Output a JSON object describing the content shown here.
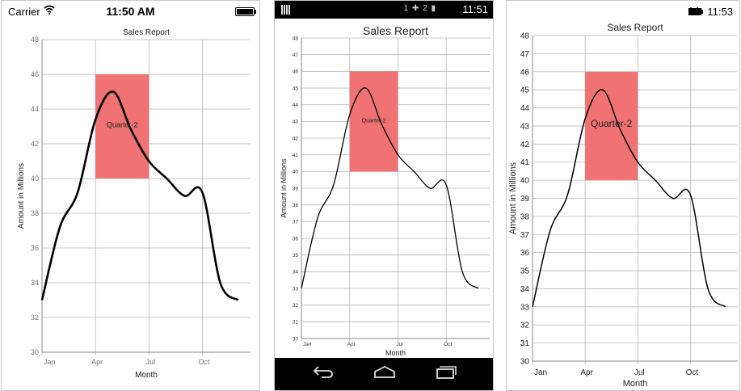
{
  "ios": {
    "carrier": "Carrier",
    "time": "11:50 AM",
    "wifi_icon": "wifi-icon",
    "battery_icon": "battery-icon"
  },
  "android": {
    "time": "11:51",
    "status_icons": "1  ✚ 2   ▮",
    "nav": {
      "back_icon": "back-icon",
      "home_icon": "home-icon",
      "recents_icon": "recents-icon"
    }
  },
  "windows": {
    "time": "11:53",
    "battery_icon": "battery-icon"
  },
  "chart_data": [
    {
      "type": "line",
      "platform": "iOS",
      "title": "Sales Report",
      "xlabel": "Month",
      "ylabel": "Amount in Millions",
      "x_ticks": [
        "Jan",
        "Apr",
        "Jul",
        "Oct"
      ],
      "ylim": [
        30,
        48
      ],
      "y_ticks": [
        30,
        32,
        34,
        36,
        38,
        40,
        42,
        44,
        46,
        48
      ],
      "grid": true,
      "series": [
        {
          "x": [
            1,
            2,
            3,
            4,
            5,
            6,
            7,
            8,
            9,
            10,
            11,
            12
          ],
          "values": [
            33,
            37.2,
            39.2,
            43.4,
            45,
            42.8,
            41,
            40,
            39,
            39.2,
            34,
            33
          ]
        }
      ],
      "band": {
        "label": "Quarter-2",
        "x_from": 4,
        "x_to": 7,
        "y_from": 40,
        "y_to": 46,
        "color": "#F07272"
      }
    },
    {
      "type": "line",
      "platform": "Android",
      "title": "Sales Report",
      "xlabel": "Month",
      "ylabel": "Amount in Millions",
      "x_ticks": [
        "Jan",
        "Apr",
        "Jul",
        "Oct"
      ],
      "ylim": [
        30,
        48
      ],
      "y_ticks": [
        30,
        31,
        32,
        33,
        34,
        35,
        36,
        37,
        38,
        39,
        40,
        41,
        42,
        43,
        44,
        45,
        46,
        47,
        48
      ],
      "grid": true,
      "series": [
        {
          "x": [
            1,
            2,
            3,
            4,
            5,
            6,
            7,
            8,
            9,
            10,
            11,
            12
          ],
          "values": [
            33,
            37.2,
            39.2,
            43.4,
            45,
            42.8,
            41,
            40,
            39,
            39.2,
            34,
            33
          ]
        }
      ],
      "band": {
        "label": "Quarter-2",
        "x_from": 4,
        "x_to": 7,
        "y_from": 40,
        "y_to": 46,
        "color": "#F07272"
      }
    },
    {
      "type": "line",
      "platform": "Windows",
      "title": "Sales Report",
      "xlabel": "Month",
      "ylabel": "Amount in Millions",
      "x_ticks": [
        "Jan",
        "Apr",
        "Jul",
        "Oct"
      ],
      "ylim": [
        30,
        48
      ],
      "y_ticks": [
        30,
        31,
        32,
        33,
        34,
        35,
        36,
        37,
        38,
        39,
        40,
        41,
        42,
        43,
        44,
        45,
        46,
        47,
        48
      ],
      "grid": true,
      "series": [
        {
          "x": [
            1,
            2,
            3,
            4,
            5,
            6,
            7,
            8,
            9,
            10,
            11,
            12
          ],
          "values": [
            33,
            37.2,
            39.2,
            43.4,
            45,
            42.8,
            41,
            40,
            39,
            39.2,
            34,
            33
          ]
        }
      ],
      "band": {
        "label": "Quarter-2",
        "x_from": 4,
        "x_to": 7,
        "y_from": 40,
        "y_to": 46,
        "color": "#F07272"
      }
    }
  ]
}
